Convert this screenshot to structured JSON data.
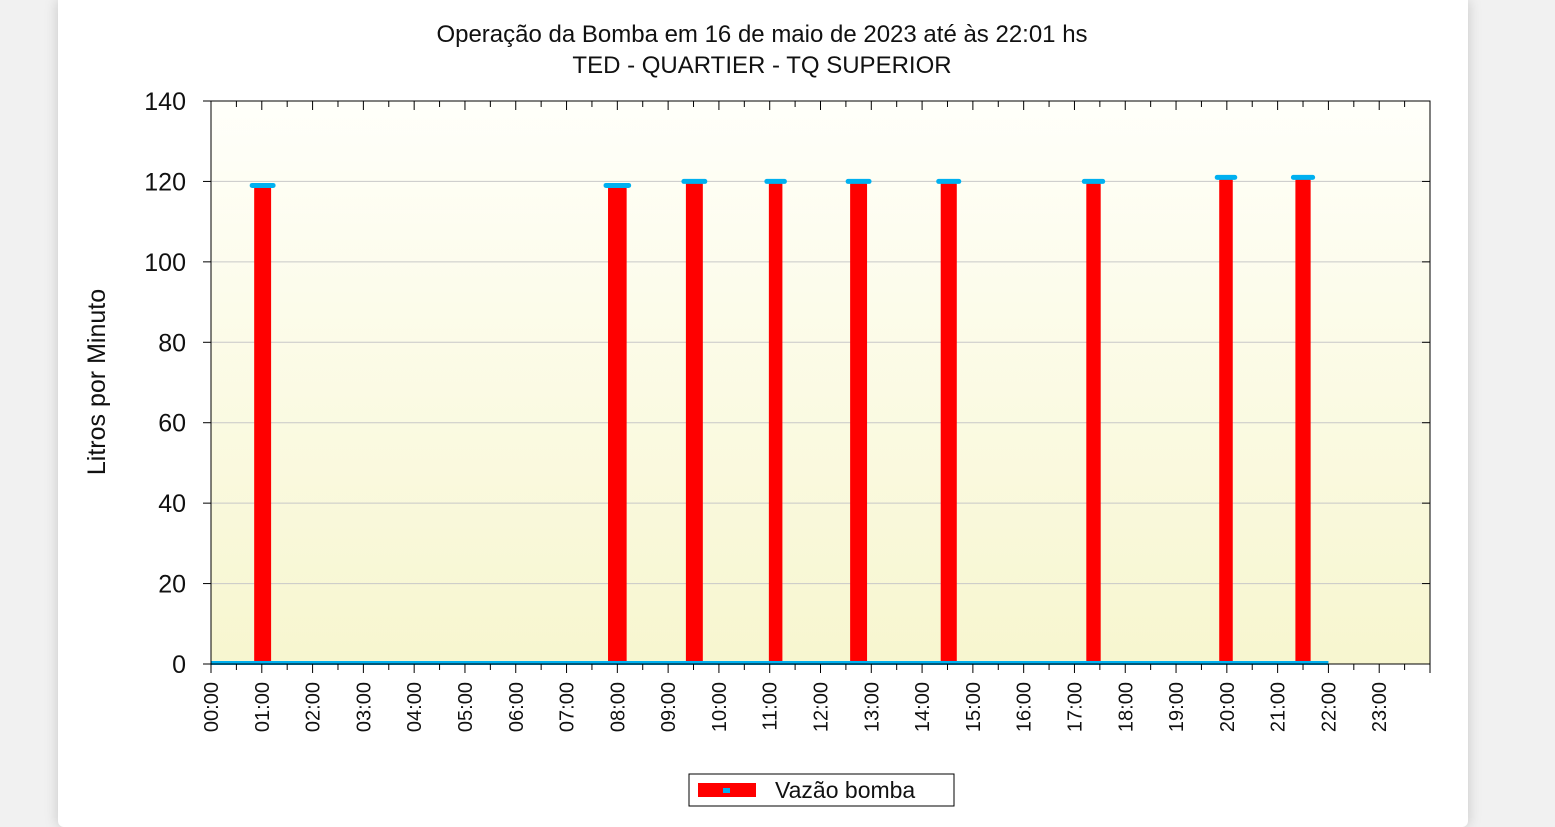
{
  "chart_data": {
    "type": "bar",
    "title": "Operação da Bomba em 16 de maio de 2023 até às 22:01 hs",
    "subtitle": "TED - QUARTIER - TQ SUPERIOR",
    "ylabel": "Litros por Minuto",
    "xlabel": "",
    "ylim": [
      0,
      140
    ],
    "y_ticks": [
      0,
      20,
      40,
      60,
      80,
      100,
      120,
      140
    ],
    "x_range_hours": [
      0,
      24
    ],
    "x_ticks": [
      "00:00",
      "01:00",
      "02:00",
      "03:00",
      "04:00",
      "05:00",
      "06:00",
      "07:00",
      "08:00",
      "09:00",
      "10:00",
      "11:00",
      "12:00",
      "13:00",
      "14:00",
      "15:00",
      "16:00",
      "17:00",
      "18:00",
      "19:00",
      "20:00",
      "21:00",
      "22:00",
      "23:00"
    ],
    "grid": true,
    "legend_position": "bottom",
    "series": [
      {
        "name": "Vazão bomba",
        "color": "#ff0000",
        "marker_color": "#00b0f0",
        "baseline": 0,
        "intervals": [
          {
            "start": "00:51",
            "end": "01:11",
            "value": 119
          },
          {
            "start": "07:49",
            "end": "08:11",
            "value": 119
          },
          {
            "start": "09:21",
            "end": "09:41",
            "value": 120
          },
          {
            "start": "10:59",
            "end": "11:15",
            "value": 120
          },
          {
            "start": "12:35",
            "end": "12:55",
            "value": 120
          },
          {
            "start": "14:22",
            "end": "14:41",
            "value": 120
          },
          {
            "start": "17:14",
            "end": "17:31",
            "value": 120
          },
          {
            "start": "19:51",
            "end": "20:07",
            "value": 121
          },
          {
            "start": "21:21",
            "end": "21:39",
            "value": 121
          }
        ]
      }
    ]
  },
  "colors": {
    "plot_background_top": "#fffffa",
    "plot_background_bottom": "#f7f6cf",
    "gridline": "#c8c8c8",
    "axis": "#000000"
  }
}
